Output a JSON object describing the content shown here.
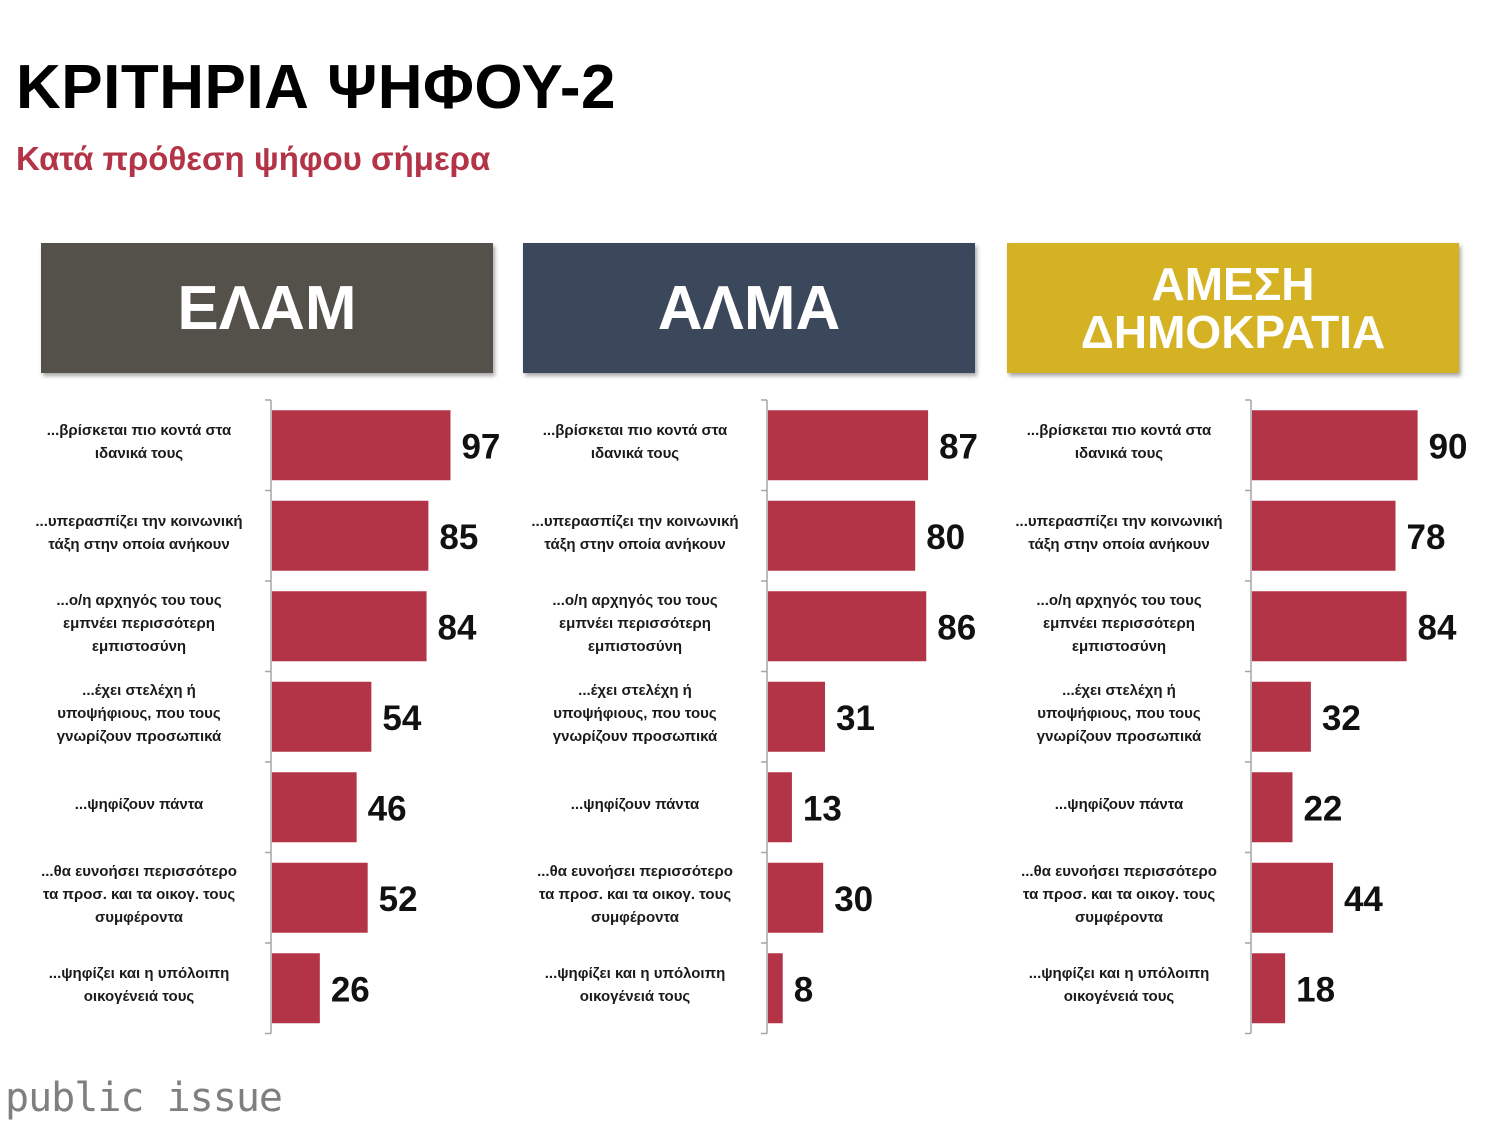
{
  "title": "ΚΡΙΤΗΡΙΑ ΨΗΦΟΥ-2",
  "subtitle": "Κατά πρόθεση ψήφου σήμερα",
  "logo_text": "public issue",
  "colors": {
    "bar": "#b33447",
    "subtitle": "#b33447",
    "elam": "#53514a",
    "alma": "#3b475a",
    "amesi": "#d4b224",
    "axis": "#a6a6a6"
  },
  "panels": [
    {
      "header_lines": [
        "ΕΛΑΜ"
      ],
      "color_key": "elam"
    },
    {
      "header_lines": [
        "ΑΛΜΑ"
      ],
      "color_key": "alma"
    },
    {
      "header_lines": [
        "ΑΜΕΣΗ",
        "ΔΗΜΟΚΡΑΤΙΑ"
      ],
      "color_key": "amesi"
    }
  ],
  "chart_data": [
    {
      "type": "bar",
      "orientation": "horizontal",
      "categories": [
        [
          "...βρίσκεται πιο κοντά στα",
          "ιδανικά τους"
        ],
        [
          "...υπερασπίζει την κοινωνική",
          "τάξη στην οποία ανήκουν"
        ],
        [
          "...ο/η αρχηγός του τους",
          "εμπνέει περισσότερη",
          "εμπιστοσύνη"
        ],
        [
          "...έχει στελέχη ή",
          "υποψήφιους, που τους",
          "γνωρίζουν προσωπικά"
        ],
        [
          "...ψηφίζουν πάντα"
        ],
        [
          "...θα ευνοήσει περισσότερο",
          "τα προσ. και τα οικογ. τους",
          "συμφέροντα"
        ],
        [
          "...ψηφίζει και η υπόλοιπη",
          "οικογένειά τους"
        ]
      ],
      "values": [
        97,
        85,
        84,
        54,
        46,
        52,
        26
      ]
    },
    {
      "type": "bar",
      "orientation": "horizontal",
      "categories": [
        [
          "...βρίσκεται πιο κοντά στα",
          "ιδανικά τους"
        ],
        [
          "...υπερασπίζει την κοινωνική",
          "τάξη στην οποία ανήκουν"
        ],
        [
          "...ο/η αρχηγός του τους",
          "εμπνέει περισσότερη",
          "εμπιστοσύνη"
        ],
        [
          "...έχει στελέχη ή",
          "υποψήφιους, που τους",
          "γνωρίζουν προσωπικά"
        ],
        [
          "...ψηφίζουν πάντα"
        ],
        [
          "...θα ευνοήσει περισσότερο",
          "τα προσ. και τα οικογ. τους",
          "συμφέροντα"
        ],
        [
          "...ψηφίζει και η υπόλοιπη",
          "οικογένειά τους"
        ]
      ],
      "values": [
        87,
        80,
        86,
        31,
        13,
        30,
        8
      ]
    },
    {
      "type": "bar",
      "orientation": "horizontal",
      "categories": [
        [
          "...βρίσκεται πιο κοντά στα",
          "ιδανικά τους"
        ],
        [
          "...υπερασπίζει την κοινωνική",
          "τάξη στην οποία ανήκουν"
        ],
        [
          "...ο/η αρχηγός του τους",
          "εμπνέει περισσότερη",
          "εμπιστοσύνη"
        ],
        [
          "...έχει στελέχη ή",
          "υποψήφιους, που τους",
          "γνωρίζουν προσωπικά"
        ],
        [
          "...ψηφίζουν πάντα"
        ],
        [
          "...θα ευνοήσει περισσότερο",
          "τα προσ. και τα οικογ. τους",
          "συμφέροντα"
        ],
        [
          "...ψηφίζει και η υπόλοιπη",
          "οικογένειά τους"
        ]
      ],
      "values": [
        90,
        78,
        84,
        32,
        22,
        44,
        18
      ]
    }
  ]
}
